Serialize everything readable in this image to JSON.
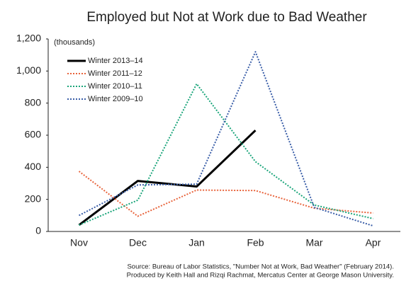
{
  "chart_data": {
    "type": "line",
    "title": "Employed but Not at Work due to Bad Weather",
    "y_label": "(thousands)",
    "categories": [
      "Nov",
      "Dec",
      "Jan",
      "Feb",
      "Mar",
      "Apr"
    ],
    "series": [
      {
        "name": "Winter 2013–14",
        "color": "#000000",
        "style": "solid",
        "values": [
          40,
          315,
          280,
          630,
          null,
          null
        ]
      },
      {
        "name": "Winter 2011–12",
        "color": "#e8643c",
        "style": "dotted",
        "values": [
          375,
          95,
          258,
          255,
          145,
          115
        ]
      },
      {
        "name": "Winter 2010–11",
        "color": "#1aa57a",
        "style": "dotted",
        "values": [
          40,
          195,
          920,
          435,
          165,
          80
        ]
      },
      {
        "name": "Winter 2009–10",
        "color": "#3a5ea8",
        "style": "dotted",
        "values": [
          100,
          290,
          295,
          1120,
          150,
          35
        ]
      }
    ],
    "ylim": [
      0,
      1200
    ],
    "yticks": [
      0,
      200,
      400,
      600,
      800,
      {
        "value": 1000,
        "label": "1,000"
      },
      {
        "value": 1200,
        "label": "1,200"
      }
    ],
    "grid": false,
    "legend": "upper left",
    "source": [
      "Source: Bureau of Labor Statistics, \"Number Not at Work, Bad Weather\" (February 2014).",
      "Produced by Keith Hall and Rizqi Rachmat, Mercatus Center at George Mason University."
    ]
  }
}
